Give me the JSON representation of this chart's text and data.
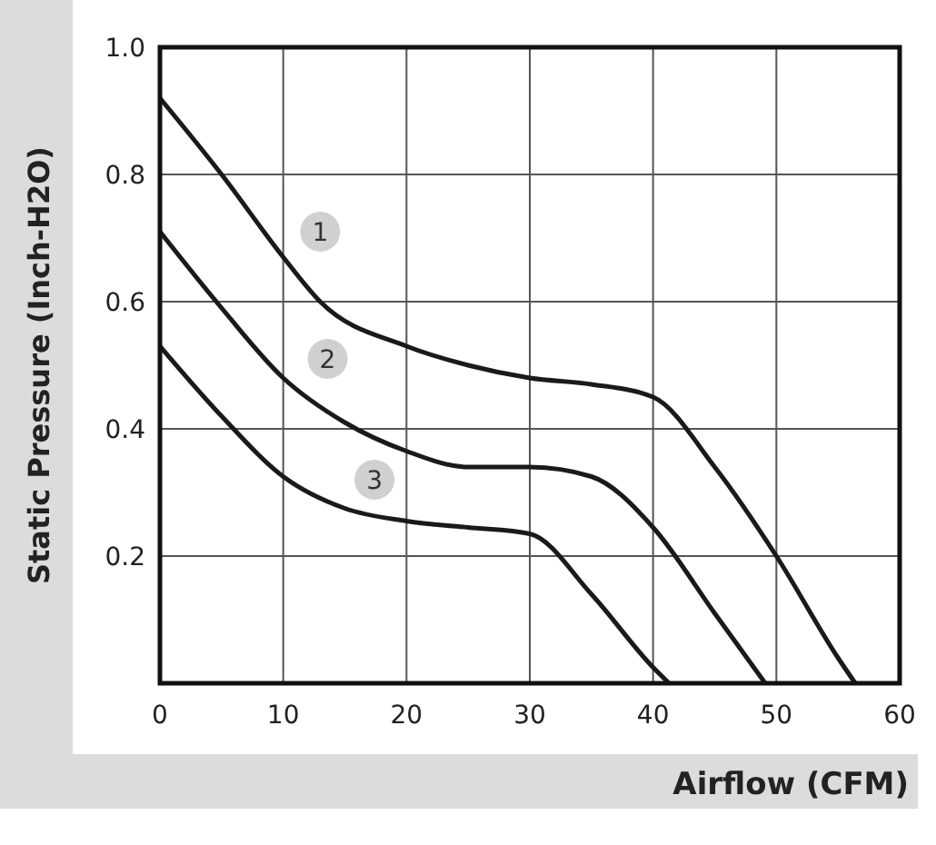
{
  "chart_data": {
    "type": "line",
    "xlabel": "Airflow (CFM)",
    "ylabel": "Static Pressure (Inch-H2O)",
    "xlim": [
      0,
      60
    ],
    "ylim": [
      0,
      1
    ],
    "xticks": [
      0,
      10,
      20,
      30,
      40,
      50,
      60
    ],
    "yticks": [
      {
        "value": 0.2,
        "label": "0.2"
      },
      {
        "value": 0.4,
        "label": "0.4"
      },
      {
        "value": 0.6,
        "label": "0.6"
      },
      {
        "value": 0.8,
        "label": "0.8"
      },
      {
        "value": 1,
        "label": "1.0"
      }
    ],
    "grid": true,
    "marker": "none",
    "line_style": "solid",
    "series": [
      {
        "color": "#1a1a1a",
        "x": [
          0,
          5,
          10,
          13,
          20,
          25,
          30,
          35,
          40,
          45,
          50,
          55,
          56.4
        ],
        "values": [
          0.92,
          0.8,
          0.67,
          0.6,
          0.53,
          0.5,
          0.48,
          0.47,
          0.45,
          0.34,
          0.2,
          0.04,
          0
        ]
      },
      {
        "color": "#1a1a1a",
        "x": [
          0,
          5,
          10,
          15,
          20,
          25,
          30,
          35,
          40,
          45,
          49.1
        ],
        "values": [
          0.71,
          0.59,
          0.48,
          0.41,
          0.365,
          0.34,
          0.34,
          0.325,
          0.245,
          0.11,
          0
        ]
      },
      {
        "color": "#1a1a1a",
        "x": [
          0,
          5,
          10,
          15,
          20,
          25,
          30,
          35,
          40,
          41.3
        ],
        "values": [
          0.53,
          0.42,
          0.325,
          0.275,
          0.255,
          0.245,
          0.235,
          0.14,
          0.025,
          0
        ]
      }
    ],
    "annotations": [
      {
        "text": "1",
        "x": 13,
        "y": 0.71
      },
      {
        "text": "2",
        "x": 13.6,
        "y": 0.51
      },
      {
        "text": "3",
        "x": 17.4,
        "y": 0.32
      }
    ]
  }
}
